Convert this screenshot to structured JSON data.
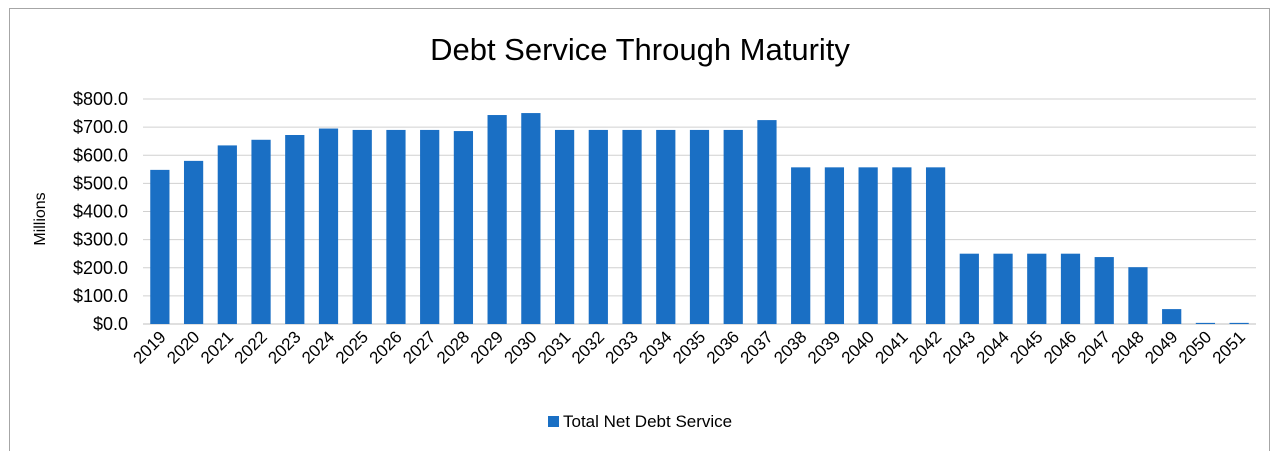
{
  "chart_data": {
    "type": "bar",
    "title": "Debt Service Through Maturity",
    "ylabel": "Millions",
    "xlabel": "",
    "ylim": [
      0,
      800
    ],
    "yticks": [
      "$0.0",
      "$100.0",
      "$200.0",
      "$300.0",
      "$400.0",
      "$500.0",
      "$600.0",
      "$700.0",
      "$800.0"
    ],
    "grid": true,
    "legend_position": "bottom",
    "bar_color": "#1a6fc4",
    "categories": [
      "2019",
      "2020",
      "2021",
      "2022",
      "2023",
      "2024",
      "2025",
      "2026",
      "2027",
      "2028",
      "2029",
      "2030",
      "2031",
      "2032",
      "2033",
      "2034",
      "2035",
      "2036",
      "2037",
      "2038",
      "2039",
      "2040",
      "2041",
      "2042",
      "2043",
      "2044",
      "2045",
      "2046",
      "2047",
      "2048",
      "2049",
      "2050",
      "2051"
    ],
    "series": [
      {
        "name": "Total Net Debt Service",
        "values": [
          548,
          580,
          635,
          655,
          672,
          695,
          690,
          690,
          690,
          686,
          743,
          750,
          690,
          690,
          690,
          690,
          690,
          690,
          725,
          557,
          557,
          557,
          557,
          557,
          250,
          250,
          250,
          250,
          238,
          202,
          53,
          4,
          4
        ]
      }
    ]
  }
}
